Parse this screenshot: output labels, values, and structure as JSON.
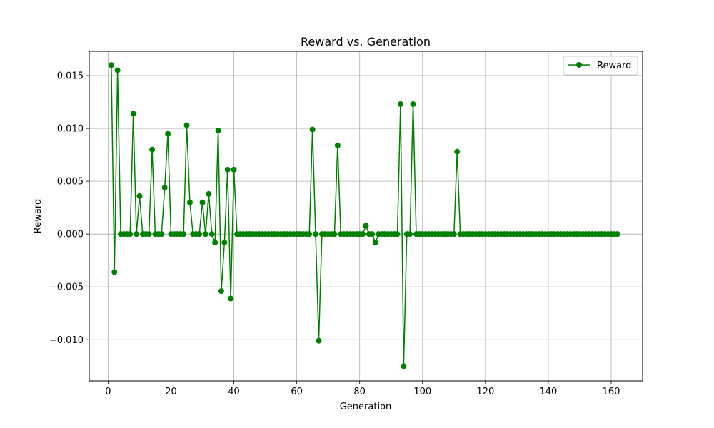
{
  "chart_data": {
    "type": "line",
    "title": "Reward vs. Generation",
    "xlabel": "Generation",
    "ylabel": "Reward",
    "xlim": [
      -6,
      170
    ],
    "ylim": [
      -0.0139,
      0.0173
    ],
    "xticks": [
      0,
      20,
      40,
      60,
      80,
      100,
      120,
      140,
      160
    ],
    "xtick_labels": [
      "0",
      "20",
      "40",
      "60",
      "80",
      "100",
      "120",
      "140",
      "160"
    ],
    "yticks": [
      -0.01,
      -0.005,
      0.0,
      0.005,
      0.01,
      0.015
    ],
    "ytick_labels": [
      "−0.010",
      "−0.005",
      "0.000",
      "0.005",
      "0.010",
      "0.015"
    ],
    "grid": true,
    "legend_position": "top-right",
    "color": "#008000",
    "series": [
      {
        "name": "Reward",
        "x": [
          1,
          2,
          3,
          4,
          5,
          6,
          7,
          8,
          9,
          10,
          11,
          12,
          13,
          14,
          15,
          16,
          17,
          18,
          19,
          20,
          21,
          22,
          23,
          24,
          25,
          26,
          27,
          28,
          29,
          30,
          31,
          32,
          33,
          34,
          35,
          36,
          37,
          38,
          39,
          40,
          41,
          42,
          43,
          44,
          45,
          46,
          47,
          48,
          49,
          50,
          51,
          52,
          53,
          54,
          55,
          56,
          57,
          58,
          59,
          60,
          61,
          62,
          63,
          64,
          65,
          66,
          67,
          68,
          69,
          70,
          71,
          72,
          73,
          74,
          75,
          76,
          77,
          78,
          79,
          80,
          81,
          82,
          83,
          84,
          85,
          86,
          87,
          88,
          89,
          90,
          91,
          92,
          93,
          94,
          95,
          96,
          97,
          98,
          99,
          100,
          101,
          102,
          103,
          104,
          105,
          106,
          107,
          108,
          109,
          110,
          111,
          112,
          113,
          114,
          115,
          116,
          117,
          118,
          119,
          120,
          121,
          122,
          123,
          124,
          125,
          126,
          127,
          128,
          129,
          130,
          131,
          132,
          133,
          134,
          135,
          136,
          137,
          138,
          139,
          140,
          141,
          142,
          143,
          144,
          145,
          146,
          147,
          148,
          149,
          150,
          151,
          152,
          153,
          154,
          155,
          156,
          157,
          158,
          159,
          160,
          161,
          162
        ],
        "values": [
          0.016,
          -0.0036,
          0.0155,
          0,
          0,
          0,
          0,
          0.0114,
          0,
          0.0036,
          0,
          0,
          0,
          0.008,
          0,
          0,
          0,
          0.0044,
          0.0095,
          0,
          0,
          0,
          0,
          0,
          0.0103,
          0.003,
          0,
          0,
          0,
          0.003,
          0,
          0.0038,
          0,
          -0.0008,
          0.0098,
          -0.0054,
          -0.0008,
          0.0061,
          -0.0061,
          0.0061,
          0,
          0,
          0,
          0,
          0,
          0,
          0,
          0,
          0,
          0,
          0,
          0,
          0,
          0,
          0,
          0,
          0,
          0,
          0,
          0,
          0,
          0,
          0,
          0,
          0.0099,
          0,
          -0.0101,
          0,
          0,
          0,
          0,
          0,
          0.0084,
          0,
          0,
          0,
          0,
          0,
          0,
          0,
          0,
          0.0008,
          0,
          0,
          -0.0008,
          0,
          0,
          0,
          0,
          0,
          0,
          0,
          0.0123,
          -0.0125,
          0,
          0,
          0.0123,
          0,
          0,
          0,
          0,
          0,
          0,
          0,
          0,
          0,
          0,
          0,
          0,
          0,
          0.0078,
          0,
          0,
          0,
          0,
          0,
          0,
          0,
          0,
          0,
          0,
          0,
          0,
          0,
          0,
          0,
          0,
          0,
          0,
          0,
          0,
          0,
          0,
          0,
          0,
          0,
          0,
          0,
          0,
          0,
          0,
          0,
          0,
          0,
          0,
          0,
          0,
          0,
          0,
          0,
          0,
          0,
          0,
          0,
          0,
          0,
          0,
          0,
          0,
          0,
          0,
          0
        ]
      }
    ]
  }
}
